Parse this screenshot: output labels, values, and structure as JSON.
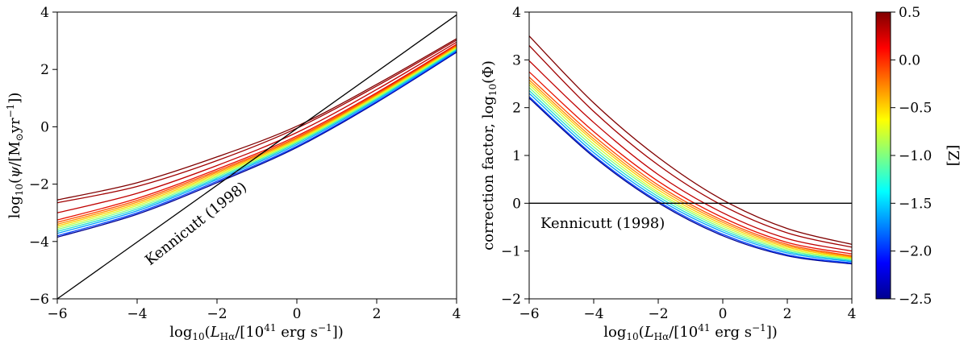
{
  "chart_data": [
    {
      "type": "line",
      "panel": "left",
      "xlabel": "log10(L_Hα/[10^41 erg s^-1])",
      "ylabel": "log10(ψ/[M_⊙yr^-1])",
      "xlim": [
        -6,
        4
      ],
      "ylim": [
        -6,
        4
      ],
      "xticks": [
        -6,
        -4,
        -2,
        0,
        2,
        4
      ],
      "yticks": [
        -6,
        -4,
        -2,
        0,
        2,
        4
      ],
      "xtick_labels": [
        "−6",
        "−4",
        "−2",
        "0",
        "2",
        "4"
      ],
      "ytick_labels": [
        "−6",
        "−4",
        "−2",
        "0",
        "2",
        "4"
      ],
      "x": [
        -6,
        -4,
        -2,
        0,
        2,
        4
      ],
      "series": [
        {
          "name": "[Z] = -2.5",
          "color": "#00008f",
          "values": [
            -3.85,
            -3.05,
            -1.95,
            -0.72,
            0.85,
            2.6
          ]
        },
        {
          "name": "[Z] = -2.0",
          "color": "#0040ff",
          "values": [
            -3.8,
            -3.0,
            -1.9,
            -0.68,
            0.88,
            2.63
          ]
        },
        {
          "name": "[Z] = -1.75",
          "color": "#00a0ff",
          "values": [
            -3.72,
            -2.93,
            -1.84,
            -0.62,
            0.93,
            2.67
          ]
        },
        {
          "name": "[Z] = -1.5",
          "color": "#20e0d0",
          "values": [
            -3.65,
            -2.87,
            -1.79,
            -0.57,
            0.97,
            2.7
          ]
        },
        {
          "name": "[Z] = -1.25",
          "color": "#80ff80",
          "values": [
            -3.58,
            -2.81,
            -1.74,
            -0.53,
            1.01,
            2.73
          ]
        },
        {
          "name": "[Z] = -1.0",
          "color": "#d0ff30",
          "values": [
            -3.52,
            -2.75,
            -1.69,
            -0.49,
            1.05,
            2.76
          ]
        },
        {
          "name": "[Z] = -0.75",
          "color": "#ffd000",
          "values": [
            -3.46,
            -2.69,
            -1.64,
            -0.45,
            1.09,
            2.79
          ]
        },
        {
          "name": "[Z] = -0.5",
          "color": "#ff9000",
          "values": [
            -3.4,
            -2.63,
            -1.59,
            -0.41,
            1.12,
            2.82
          ]
        },
        {
          "name": "[Z] = -0.25",
          "color": "#ff5000",
          "values": [
            -3.33,
            -2.57,
            -1.54,
            -0.37,
            1.15,
            2.85
          ]
        },
        {
          "name": "[Z] = 0.0",
          "color": "#e81000",
          "values": [
            -3.25,
            -2.5,
            -1.48,
            -0.32,
            1.19,
            2.88
          ]
        },
        {
          "name": "[Z] = 0.2",
          "color": "#c00000",
          "values": [
            -3.0,
            -2.32,
            -1.35,
            -0.2,
            1.3,
            2.95
          ]
        },
        {
          "name": "[Z] = 0.4",
          "color": "#a00000",
          "values": [
            -2.65,
            -2.08,
            -1.18,
            -0.05,
            1.42,
            3.02
          ]
        },
        {
          "name": "[Z] = 0.5",
          "color": "#800000",
          "values": [
            -2.55,
            -1.95,
            -1.05,
            0.02,
            1.48,
            3.07
          ]
        }
      ],
      "reference_line": {
        "name": "Kennicutt (1998)",
        "color": "#000000",
        "x": [
          -6,
          4
        ],
        "y": [
          -6,
          3.9
        ]
      },
      "annotation": "Kennicutt (1998)"
    },
    {
      "type": "line",
      "panel": "right",
      "xlabel": "log10(L_Hα/[10^41 erg s^-1])",
      "ylabel": "correction factor, log10(Φ)",
      "xlim": [
        -6,
        4
      ],
      "ylim": [
        -2,
        4
      ],
      "xticks": [
        -6,
        -4,
        -2,
        0,
        2,
        4
      ],
      "yticks": [
        -2,
        -1,
        0,
        1,
        2,
        3,
        4
      ],
      "xtick_labels": [
        "−6",
        "−4",
        "−2",
        "0",
        "2",
        "4"
      ],
      "ytick_labels": [
        "−2",
        "−1",
        "0",
        "1",
        "2",
        "3",
        "4"
      ],
      "x": [
        -6,
        -4,
        -2,
        0,
        2,
        4
      ],
      "series": [
        {
          "name": "[Z] = -2.5",
          "color": "#00008f",
          "values": [
            2.2,
            0.97,
            0.01,
            -0.68,
            -1.1,
            -1.27
          ]
        },
        {
          "name": "[Z] = -2.0",
          "color": "#0040ff",
          "values": [
            2.23,
            1.0,
            0.04,
            -0.65,
            -1.08,
            -1.25
          ]
        },
        {
          "name": "[Z] = -1.75",
          "color": "#00a0ff",
          "values": [
            2.3,
            1.06,
            0.09,
            -0.6,
            -1.04,
            -1.22
          ]
        },
        {
          "name": "[Z] = -1.5",
          "color": "#20e0d0",
          "values": [
            2.36,
            1.12,
            0.14,
            -0.56,
            -1.01,
            -1.2
          ]
        },
        {
          "name": "[Z] = -1.25",
          "color": "#80ff80",
          "values": [
            2.42,
            1.18,
            0.19,
            -0.52,
            -0.98,
            -1.18
          ]
        },
        {
          "name": "[Z] = -1.0",
          "color": "#d0ff30",
          "values": [
            2.48,
            1.24,
            0.23,
            -0.48,
            -0.95,
            -1.16
          ]
        },
        {
          "name": "[Z] = -0.75",
          "color": "#ffd000",
          "values": [
            2.53,
            1.3,
            0.28,
            -0.44,
            -0.92,
            -1.14
          ]
        },
        {
          "name": "[Z] = -0.5",
          "color": "#ff9000",
          "values": [
            2.58,
            1.35,
            0.33,
            -0.4,
            -0.89,
            -1.12
          ]
        },
        {
          "name": "[Z] = -0.25",
          "color": "#ff5000",
          "values": [
            2.64,
            1.41,
            0.38,
            -0.36,
            -0.86,
            -1.1
          ]
        },
        {
          "name": "[Z] = 0.0",
          "color": "#e81000",
          "values": [
            2.75,
            1.5,
            0.46,
            -0.3,
            -0.82,
            -1.06
          ]
        },
        {
          "name": "[Z] = 0.2",
          "color": "#c00000",
          "values": [
            2.98,
            1.69,
            0.6,
            -0.2,
            -0.74,
            -1.0
          ]
        },
        {
          "name": "[Z] = 0.4",
          "color": "#a00000",
          "values": [
            3.3,
            1.92,
            0.8,
            -0.05,
            -0.62,
            -0.92
          ]
        },
        {
          "name": "[Z] = 0.5",
          "color": "#800000",
          "values": [
            3.5,
            2.1,
            0.96,
            0.07,
            -0.53,
            -0.86
          ]
        }
      ],
      "reference_line": {
        "name": "Kennicutt (1998)",
        "color": "#000000",
        "x": [
          -6,
          4
        ],
        "y": [
          0,
          0
        ]
      },
      "annotation": "Kennicutt (1998)"
    },
    {
      "type": "colorbar",
      "label": "[Z]",
      "range": [
        -2.5,
        0.5
      ],
      "ticks": [
        -2.5,
        -2.0,
        -1.5,
        -1.0,
        -0.5,
        0.0,
        0.5
      ],
      "tick_labels": [
        "−2.5",
        "−2.0",
        "−1.5",
        "−1.0",
        "−0.5",
        "0.0",
        "0.5"
      ],
      "colormap": [
        "#00008f",
        "#0000ff",
        "#0080ff",
        "#00ffff",
        "#80ff80",
        "#ffff00",
        "#ff8000",
        "#ff0000",
        "#800000"
      ]
    }
  ]
}
